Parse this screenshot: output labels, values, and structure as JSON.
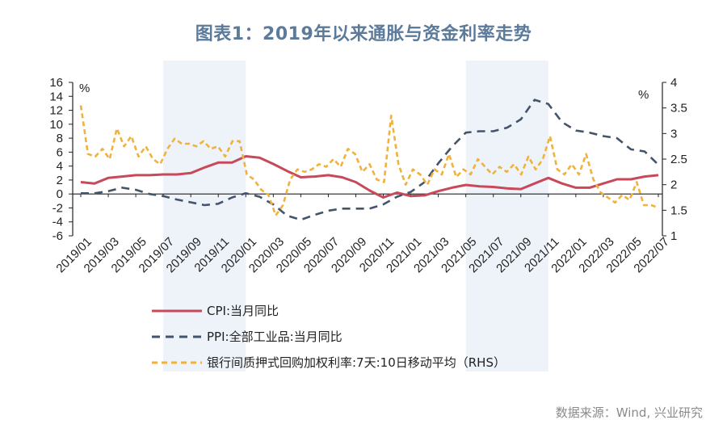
{
  "title": "图表1：2019年以来通胀与资金利率走势",
  "source": "数据来源：Wind, 兴业研究",
  "chart_data": {
    "type": "line",
    "left_axis": {
      "unit": "%",
      "ylim": [
        -6,
        16
      ],
      "ticks": [
        "16",
        "14",
        "12",
        "10",
        "8",
        "6",
        "4",
        "2",
        "0",
        "-2",
        "-4",
        "-6"
      ]
    },
    "right_axis": {
      "unit": "%",
      "ylim": [
        1,
        4
      ],
      "ticks": [
        "4",
        "3.5",
        "3",
        "2.5",
        "2",
        "1.5",
        "1"
      ]
    },
    "x_ticks": [
      "2019/01",
      "2019/03",
      "2019/05",
      "2019/07",
      "2019/09",
      "2019/11",
      "2020/01",
      "2020/03",
      "2020/05",
      "2020/07",
      "2020/09",
      "2020/11",
      "2021/01",
      "2021/03",
      "2021/05",
      "2021/07",
      "2021/09",
      "2021/11",
      "2022/01",
      "2022/03",
      "2022/05",
      "2022/07"
    ],
    "shaded_periods": [
      {
        "from": "2019/07",
        "to": "2020/01"
      },
      {
        "from": "2021/05",
        "to": "2021/11"
      }
    ],
    "series": [
      {
        "name": "CPI:当月同比",
        "axis": "left",
        "color": "#c7495a",
        "dash": "solid",
        "values": [
          1.7,
          1.5,
          2.3,
          2.5,
          2.7,
          2.7,
          2.8,
          2.8,
          3.0,
          3.8,
          4.5,
          4.5,
          5.4,
          5.2,
          4.3,
          3.3,
          2.4,
          2.5,
          2.7,
          2.4,
          1.7,
          0.5,
          -0.5,
          0.2,
          -0.3,
          -0.2,
          0.4,
          0.9,
          1.3,
          1.1,
          1.0,
          0.8,
          0.7,
          1.5,
          2.3,
          1.5,
          0.9,
          0.9,
          1.5,
          2.1,
          2.1,
          2.5,
          2.7
        ]
      },
      {
        "name": "PPI:全部工业品:当月同比",
        "axis": "left",
        "color": "#44546a",
        "dash": "dashed",
        "values": [
          0.1,
          0.1,
          0.4,
          0.9,
          0.6,
          0.0,
          -0.3,
          -0.8,
          -1.2,
          -1.6,
          -1.4,
          -0.5,
          0.1,
          -0.4,
          -1.5,
          -3.1,
          -3.7,
          -3.0,
          -2.4,
          -2.1,
          -2.1,
          -2.1,
          -1.5,
          -0.4,
          0.3,
          1.7,
          4.4,
          6.8,
          8.8,
          9.0,
          9.0,
          9.5,
          10.7,
          13.5,
          12.9,
          10.3,
          9.1,
          8.8,
          8.3,
          8.0,
          6.4,
          6.1,
          4.2
        ]
      },
      {
        "name": "银行间质押式回购加权利率:7天:10日移动平均（RHS）",
        "axis": "right",
        "color": "#f0b23c",
        "dash": "dashed",
        "values": [
          3.55,
          2.6,
          2.55,
          2.7,
          2.5,
          3.1,
          2.75,
          2.95,
          2.55,
          2.75,
          2.5,
          2.4,
          2.7,
          2.9,
          2.8,
          2.8,
          2.75,
          2.85,
          2.7,
          2.75,
          2.55,
          2.85,
          2.85,
          2.2,
          2.1,
          1.9,
          1.8,
          1.4,
          1.6,
          2.1,
          2.3,
          2.25,
          2.3,
          2.4,
          2.35,
          2.5,
          2.35,
          2.7,
          2.6,
          2.25,
          2.4,
          2.1,
          2.05,
          3.35,
          2.4,
          2.0,
          2.3,
          2.2,
          2.0,
          2.3,
          2.2,
          2.6,
          2.15,
          2.3,
          2.2,
          2.5,
          2.35,
          2.2,
          2.35,
          2.25,
          2.4,
          2.2,
          2.55,
          2.3,
          2.5,
          2.95,
          2.3,
          2.2,
          2.4,
          2.2,
          2.6,
          2.1,
          1.85,
          1.75,
          1.65,
          1.8,
          1.7,
          2.05,
          1.6,
          1.6,
          1.55
        ]
      }
    ]
  }
}
